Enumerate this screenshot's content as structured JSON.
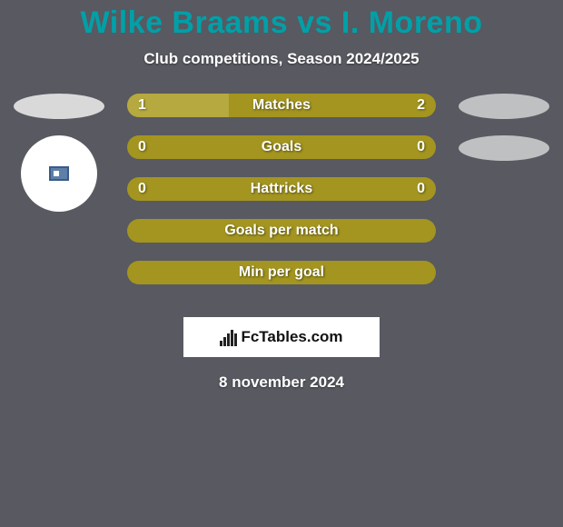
{
  "background_color": "#585961",
  "title": {
    "text": "Wilke Braams vs I. Moreno",
    "color": "#00a0a8",
    "fontsize": 34
  },
  "subtitle": {
    "text": "Club competitions, Season 2024/2025",
    "color": "#ffffff",
    "fontsize": 17
  },
  "players": {
    "left": {
      "ellipse_color": "#d9d9d9",
      "show_silhouette": true
    },
    "right": {
      "ellipse_color": "#bfc0c2",
      "ellipse2_color": "#bfc0c2",
      "show_silhouette": false
    }
  },
  "bars": {
    "base_color": "#a3951f",
    "highlight_color": "#b5a93f",
    "label_color": "#ffffff",
    "label_fontsize": 16,
    "rows": [
      {
        "label": "Matches",
        "left_val": "1",
        "right_val": "2",
        "left_pct": 33,
        "left_fill": "#b5a93f",
        "right_fill": "#a3951f"
      },
      {
        "label": "Goals",
        "left_val": "0",
        "right_val": "0",
        "left_pct": 0,
        "left_fill": "#a3951f",
        "right_fill": "#a3951f"
      },
      {
        "label": "Hattricks",
        "left_val": "0",
        "right_val": "0",
        "left_pct": 0,
        "left_fill": "#a3951f",
        "right_fill": "#a3951f"
      },
      {
        "label": "Goals per match",
        "left_val": "",
        "right_val": "",
        "left_pct": 0,
        "left_fill": "#a3951f",
        "right_fill": "#a3951f"
      },
      {
        "label": "Min per goal",
        "left_val": "",
        "right_val": "",
        "left_pct": 0,
        "left_fill": "#a3951f",
        "right_fill": "#a3951f"
      }
    ]
  },
  "brand": {
    "text": "FcTables.com",
    "box_bg": "#ffffff",
    "icon_color": "#222222"
  },
  "date": {
    "text": "8 november 2024",
    "color": "#ffffff",
    "fontsize": 17
  }
}
